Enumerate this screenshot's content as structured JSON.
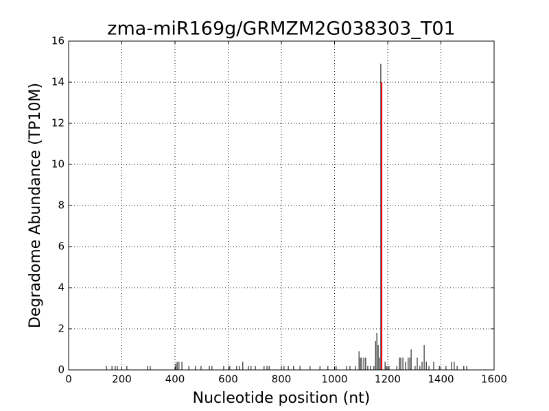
{
  "chart_data": {
    "type": "vlines",
    "title": "zma-miR169g/GRMZM2G038303_T01",
    "xlabel": "Nucleotide position (nt)",
    "ylabel": "Degradome Abundance (TP10M)",
    "x": [
      142,
      163,
      175,
      183,
      219,
      297,
      307,
      403,
      408,
      415,
      426,
      452,
      477,
      498,
      529,
      539,
      583,
      606,
      632,
      643,
      655,
      676,
      686,
      702,
      735,
      746,
      754,
      800,
      810,
      826,
      846,
      870,
      908,
      945,
      975,
      1006,
      1045,
      1058,
      1079,
      1092,
      1097,
      1102,
      1110,
      1117,
      1125,
      1135,
      1148,
      1154,
      1159,
      1164,
      1169,
      1174,
      1190,
      1195,
      1205,
      1234,
      1244,
      1249,
      1257,
      1267,
      1277,
      1283,
      1288,
      1303,
      1311,
      1321,
      1329,
      1337,
      1345,
      1355,
      1373,
      1394,
      1419,
      1440,
      1450,
      1461,
      1486,
      1497
    ],
    "values": [
      0.2,
      0.2,
      0.2,
      0.2,
      0.2,
      0.2,
      0.2,
      0.3,
      0.4,
      0.4,
      0.4,
      0.2,
      0.2,
      0.2,
      0.2,
      0.2,
      0.2,
      0.2,
      0.2,
      0.2,
      0.4,
      0.2,
      0.2,
      0.2,
      0.2,
      0.2,
      0.2,
      0.2,
      0.2,
      0.2,
      0.2,
      0.2,
      0.2,
      0.2,
      0.2,
      0.2,
      0.2,
      0.2,
      0.2,
      0.9,
      0.6,
      0.6,
      0.6,
      0.6,
      0.2,
      0.2,
      0.2,
      1.4,
      1.8,
      1.2,
      0.6,
      14.9,
      0.4,
      0.2,
      0.2,
      0.2,
      0.6,
      0.6,
      0.6,
      0.4,
      0.6,
      0.6,
      1.0,
      0.2,
      0.6,
      0.2,
      0.4,
      1.2,
      0.4,
      0.2,
      0.4,
      0.2,
      0.2,
      0.4,
      0.4,
      0.2,
      0.2,
      0.2
    ],
    "color": "#000000",
    "highlight_x": 1177,
    "highlight_value": 14,
    "highlight_color": "#ff0000",
    "xlim": [
      0,
      1600
    ],
    "xticks": [
      0,
      200,
      400,
      600,
      800,
      1000,
      1200,
      1400,
      1600
    ],
    "ylim": [
      0,
      16
    ],
    "yticks": [
      0,
      2,
      4,
      6,
      8,
      10,
      12,
      14,
      16
    ],
    "grid": true
  }
}
